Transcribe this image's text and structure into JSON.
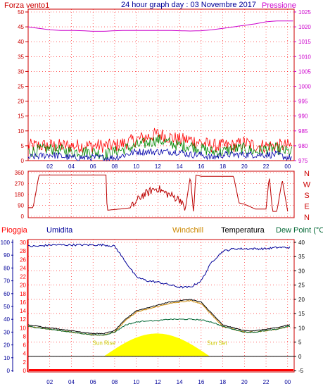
{
  "header": {
    "title": "24 hour graph day : 03 Novembre 2017",
    "left_label": "Forza vento1",
    "right_label": "Pressione"
  },
  "colors": {
    "grid": "#ff0000",
    "wind": "#ff0000",
    "wind_avg": "#0000aa",
    "wind_gust": "#008800",
    "pressure": "#cc00cc",
    "direction": "#bb0000",
    "rain": "#ff0000",
    "humidity": "#000099",
    "windchill": "#cc8800",
    "temperature": "#000000",
    "dewpoint": "#006633",
    "sun": "#ffff00",
    "sun_text": "#cccc00"
  },
  "chart_data": [
    {
      "type": "line",
      "title": "24 hour graph day : 03 Novembre 2017",
      "x_ticks": [
        "02",
        "04",
        "06",
        "08",
        "10",
        "12",
        "14",
        "16",
        "18",
        "20",
        "22",
        "00"
      ],
      "ylabel_left": "Forza vento1",
      "ylabel_right": "Pressione",
      "y_left_ticks": [
        "0",
        "5",
        "10",
        "15",
        "20",
        "25",
        "30",
        "35",
        "40",
        "45",
        "50"
      ],
      "y_right_ticks": [
        "975",
        "980",
        "985",
        "990",
        "995",
        "1000",
        "1005",
        "1010",
        "1015",
        "1020",
        "1025"
      ],
      "ylim_left": [
        0,
        50
      ],
      "ylim_right": [
        975,
        1025
      ],
      "series": [
        {
          "name": "Pressione",
          "axis": "right",
          "x": [
            0,
            1,
            2,
            3,
            4,
            5,
            6,
            7,
            8,
            9,
            10,
            11,
            12,
            13,
            14,
            15,
            16,
            17,
            18,
            19,
            20,
            21,
            22,
            23,
            24
          ],
          "values": [
            1020,
            1019.5,
            1019,
            1018.8,
            1018.8,
            1018.7,
            1018.5,
            1018.5,
            1018.7,
            1018.8,
            1018.8,
            1018.8,
            1018.8,
            1018.8,
            1018.7,
            1018.6,
            1018.7,
            1019,
            1019.5,
            1020,
            1020.5,
            1021,
            1021.7,
            1022,
            1022
          ]
        },
        {
          "name": "Forza vento1",
          "axis": "left",
          "x": [
            0,
            2,
            4,
            6,
            7,
            8,
            9,
            10,
            11,
            12,
            13,
            14,
            15,
            16,
            17,
            18,
            19,
            20,
            21,
            22,
            23,
            24
          ],
          "values": [
            3,
            4,
            3,
            3,
            2,
            3,
            4,
            5,
            6,
            7,
            6,
            5,
            5,
            4,
            3,
            3,
            4,
            4,
            3,
            4,
            4,
            3
          ],
          "gust": [
            5,
            5,
            5,
            5,
            5,
            5,
            6,
            7,
            8,
            9,
            8,
            7,
            7,
            6,
            5,
            5,
            5,
            6,
            5,
            5,
            5,
            5
          ],
          "avg": [
            1,
            2,
            1,
            1,
            1,
            1,
            2,
            3,
            3,
            3,
            3,
            3,
            2,
            2,
            1,
            2,
            2,
            2,
            2,
            2,
            2,
            1
          ]
        }
      ]
    },
    {
      "type": "line",
      "x_ticks": [
        "02",
        "04",
        "06",
        "08",
        "10",
        "12",
        "14",
        "16",
        "18",
        "20",
        "22",
        "00"
      ],
      "y_ticks": [
        "0",
        "90",
        "180",
        "270",
        "360"
      ],
      "right_labels": [
        "N",
        "W",
        "S",
        "E",
        "N"
      ],
      "ylim": [
        0,
        360
      ],
      "series": [
        {
          "name": "direction",
          "x": [
            0,
            0.4,
            0.5,
            1.0,
            4.0,
            7.0,
            7.2,
            7.3,
            8.5,
            9.5,
            10,
            10.5,
            11,
            11.5,
            12,
            12.5,
            13,
            13.5,
            14,
            14.3,
            14.5,
            15,
            15.3,
            15.5,
            16,
            16.3,
            17,
            18,
            19,
            19.5,
            20,
            21,
            22,
            22.3,
            22.6,
            23,
            23.5,
            24
          ],
          "values": [
            70,
            70,
            90,
            340,
            340,
            340,
            340,
            50,
            60,
            70,
            120,
            170,
            190,
            220,
            230,
            200,
            180,
            160,
            140,
            120,
            40,
            330,
            20,
            340,
            330,
            330,
            330,
            330,
            330,
            110,
            100,
            60,
            60,
            330,
            40,
            40,
            300,
            40
          ]
        }
      ]
    },
    {
      "type": "line",
      "x_ticks": [
        "02",
        "04",
        "06",
        "08",
        "10",
        "12",
        "14",
        "16",
        "18",
        "20",
        "22",
        "00"
      ],
      "labels": [
        "Pioggia",
        "Umidita",
        "Windchill",
        "Temperatura",
        "Dew Point (°C"
      ],
      "y_left_ticks_outer": [
        "0",
        "10",
        "20",
        "30",
        "40",
        "50",
        "60",
        "70",
        "80",
        "90",
        "100"
      ],
      "y_left_ticks_inner": [
        "0",
        "2",
        "4",
        "6",
        "8",
        "10",
        "12",
        "14",
        "16",
        "18",
        "20",
        "22",
        "24",
        "26",
        "28",
        "30"
      ],
      "y_right_ticks": [
        "-5",
        "0",
        "5",
        "10",
        "15",
        "20",
        "25",
        "30",
        "35",
        "40"
      ],
      "ylim_humidity": [
        0,
        100
      ],
      "ylim_temp": [
        -5,
        40
      ],
      "annotations": [
        "Sun Rise",
        "Sun Set"
      ],
      "series": [
        {
          "name": "Umidita",
          "axis": "humidity",
          "x": [
            0,
            1,
            2,
            3,
            4,
            5,
            6,
            7,
            8,
            9,
            10,
            11,
            12,
            13,
            14,
            15,
            16,
            17,
            18,
            19,
            20,
            21,
            22,
            23,
            24
          ],
          "values": [
            97,
            97,
            98,
            98,
            98,
            98,
            98,
            98,
            97,
            85,
            73,
            70,
            69,
            67,
            65,
            65,
            70,
            85,
            93,
            95,
            95,
            95,
            95,
            96,
            96
          ]
        },
        {
          "name": "Temperatura",
          "axis": "temp",
          "x": [
            0,
            1,
            2,
            3,
            4,
            5,
            6,
            7,
            8,
            9,
            10,
            11,
            12,
            13,
            14,
            15,
            16,
            17,
            18,
            19,
            20,
            21,
            22,
            23,
            24
          ],
          "values": [
            11,
            10.5,
            10,
            9.5,
            9,
            8.5,
            8,
            8,
            9,
            13,
            16,
            17,
            18,
            19,
            19.5,
            20,
            19,
            15,
            11,
            10,
            9,
            9,
            9.5,
            10,
            11
          ]
        },
        {
          "name": "Dew Point",
          "axis": "temp",
          "x": [
            0,
            1,
            2,
            3,
            4,
            5,
            6,
            7,
            8,
            9,
            10,
            11,
            12,
            13,
            14,
            15,
            16,
            17,
            18,
            19,
            20,
            21,
            22,
            23,
            24
          ],
          "values": [
            10.5,
            10,
            9.5,
            9,
            8.5,
            8,
            7.5,
            7.5,
            8.5,
            11,
            12,
            12.5,
            12.5,
            13,
            13,
            13,
            12.8,
            12,
            10.5,
            9.5,
            8.5,
            8.5,
            9,
            9.5,
            10.5
          ]
        },
        {
          "name": "Windchill",
          "axis": "temp",
          "x": [
            0,
            1,
            2,
            3,
            4,
            5,
            6,
            7,
            8,
            9,
            10,
            11,
            12,
            13,
            14,
            15,
            16,
            17,
            18,
            19,
            20,
            21,
            22,
            23,
            24
          ],
          "values": [
            10.5,
            10,
            9.5,
            9,
            8.5,
            8,
            7.5,
            7.5,
            8.5,
            12.5,
            15.5,
            16.5,
            17.5,
            18.5,
            19,
            19.5,
            18.5,
            14.5,
            10.5,
            9.5,
            8.5,
            8.5,
            9,
            9.5,
            10.5
          ]
        },
        {
          "name": "Pioggia",
          "axis": "humidity",
          "x": [
            0,
            24
          ],
          "values": [
            0,
            0
          ]
        }
      ],
      "sun": {
        "rise": 7.0,
        "set": 16.8,
        "peak": 8.0,
        "peak_at": 12.2
      }
    }
  ]
}
